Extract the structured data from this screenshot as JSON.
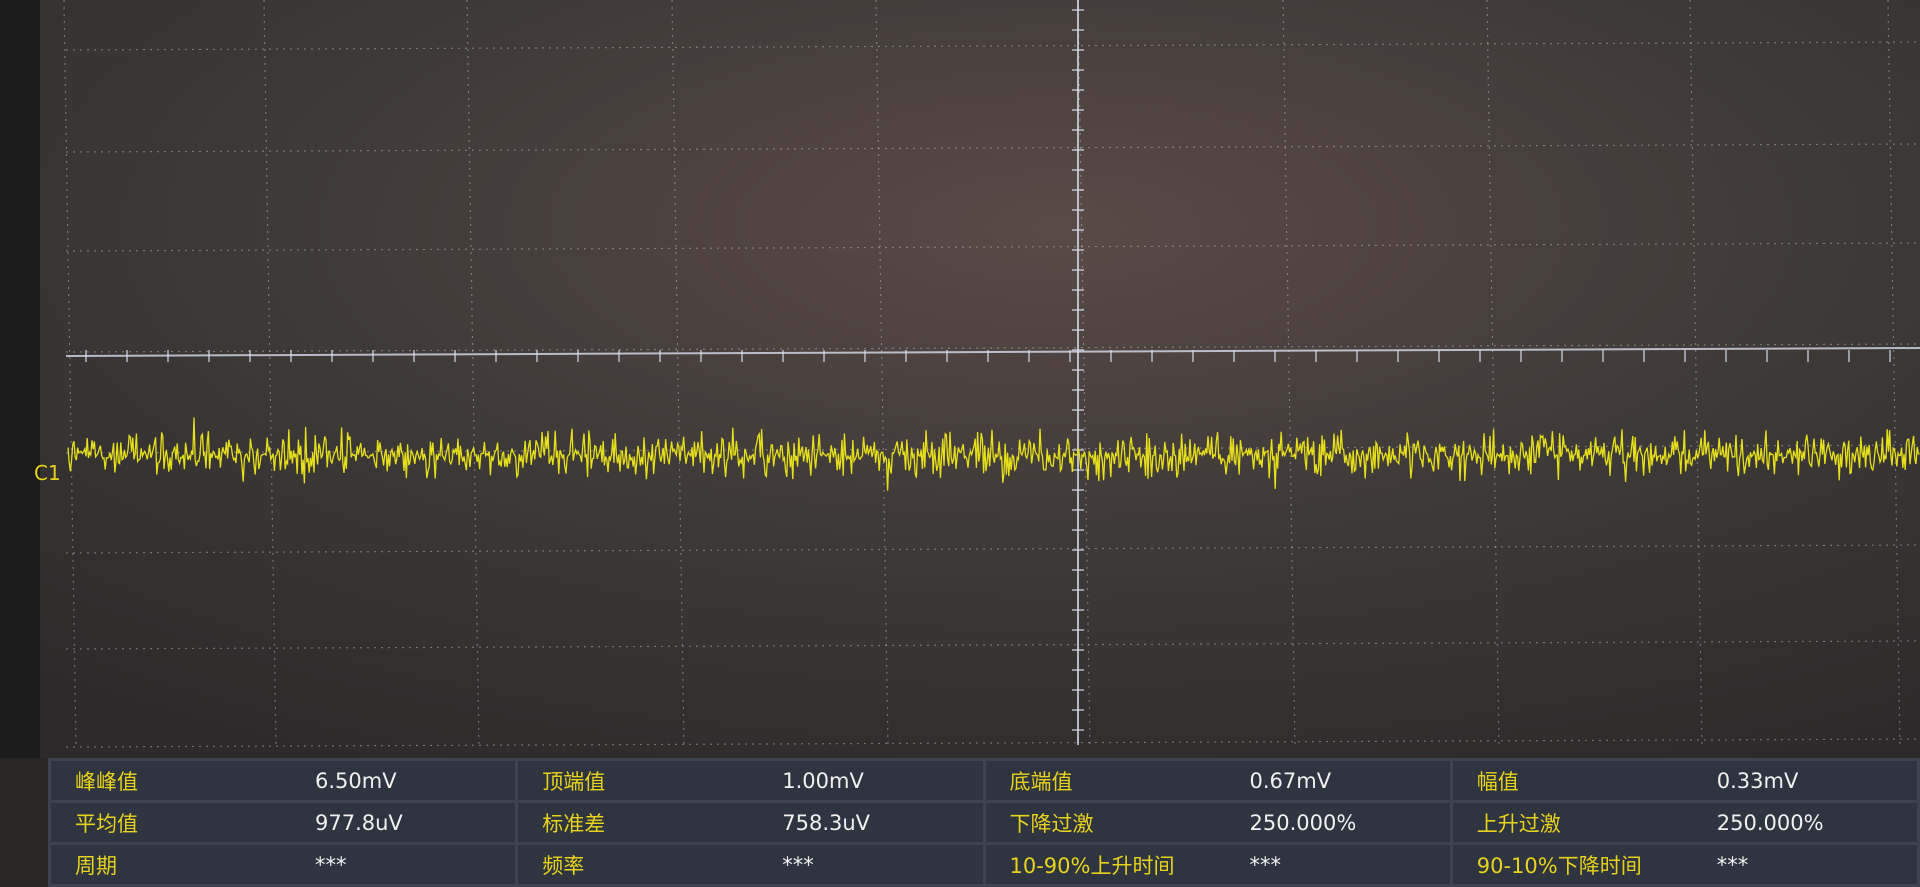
{
  "channel_label": "C1",
  "measurements": [
    [
      {
        "label": "峰峰值",
        "value": "6.50mV"
      },
      {
        "label": "顶端值",
        "value": "1.00mV"
      },
      {
        "label": "底端值",
        "value": "0.67mV"
      },
      {
        "label": "幅值",
        "value": "0.33mV"
      }
    ],
    [
      {
        "label": "平均值",
        "value": "977.8uV"
      },
      {
        "label": "标准差",
        "value": "758.3uV"
      },
      {
        "label": "下降过激",
        "value": "250.000%"
      },
      {
        "label": "上升过激",
        "value": "250.000%"
      }
    ],
    [
      {
        "label": "周期",
        "value": "***"
      },
      {
        "label": "频率",
        "value": "***"
      },
      {
        "label": "10-90%上升时间",
        "value": "***"
      },
      {
        "label": "90-10%下降时间",
        "value": "***"
      }
    ]
  ]
}
